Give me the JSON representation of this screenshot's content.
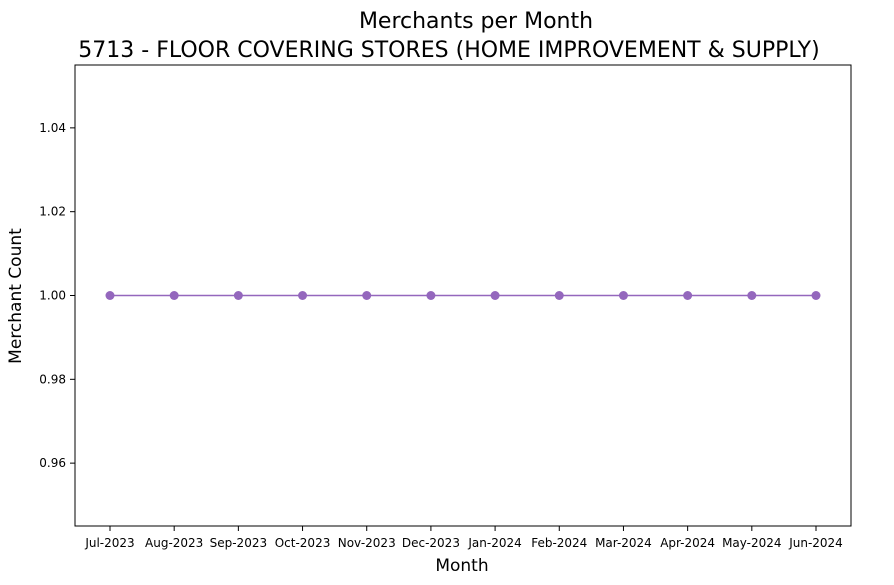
{
  "chart_data": {
    "type": "line",
    "title": "Merchants per Month",
    "subtitle": "5713 - FLOOR COVERING STORES (HOME IMPROVEMENT & SUPPLY)",
    "xlabel": "Month",
    "ylabel": "Merchant Count",
    "categories": [
      "Jul-2023",
      "Aug-2023",
      "Sep-2023",
      "Oct-2023",
      "Nov-2023",
      "Dec-2023",
      "Jan-2024",
      "Feb-2024",
      "Mar-2024",
      "Apr-2024",
      "May-2024",
      "Jun-2024"
    ],
    "series": [
      {
        "values": [
          1,
          1,
          1,
          1,
          1,
          1,
          1,
          1,
          1,
          1,
          1,
          1
        ],
        "color": "#9467bd",
        "marker": "circle"
      }
    ],
    "ylim": [
      0.945,
      1.055
    ],
    "yticks": [
      0.96,
      0.98,
      1.0,
      1.02,
      1.04
    ],
    "ytick_labels": [
      "0.96",
      "0.98",
      "1.00",
      "1.02",
      "1.04"
    ],
    "grid": false,
    "legend": "none"
  }
}
